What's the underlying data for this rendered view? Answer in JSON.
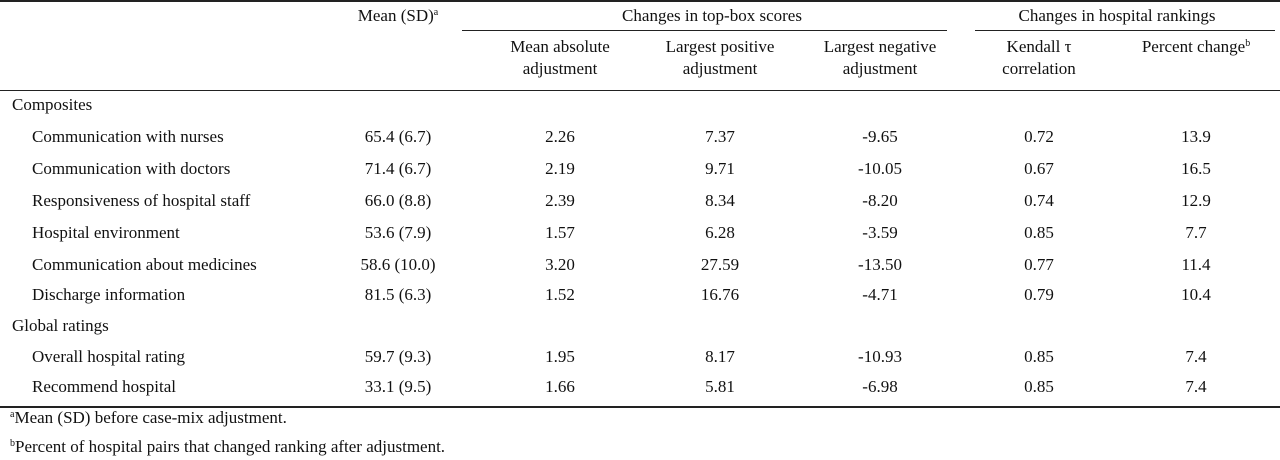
{
  "header": {
    "mean_sd": "Mean (SD)",
    "mean_sd_sup": "a",
    "group_topbox": "Changes in top-box scores",
    "group_rankings": "Changes in hospital rankings",
    "col_mean_abs_1": "Mean absolute",
    "col_mean_abs_2": "adjustment",
    "col_largest_pos_1": "Largest positive",
    "col_largest_pos_2": "adjustment",
    "col_largest_neg_1": "Largest negative",
    "col_largest_neg_2": "adjustment",
    "col_kendall_1": "Kendall τ",
    "col_kendall_2": "correlation",
    "col_percent_change": "Percent change",
    "col_percent_change_sup": "b"
  },
  "sections": [
    {
      "title": "Composites",
      "rows": [
        {
          "label": "Communication with nurses",
          "mean": "65.4 (6.7)",
          "mean_abs": "2.26",
          "pos": "7.37",
          "neg": "-9.65",
          "kendall": "0.72",
          "pct": "13.9"
        },
        {
          "label": "Communication with doctors",
          "mean": "71.4 (6.7)",
          "mean_abs": "2.19",
          "pos": "9.71",
          "neg": "-10.05",
          "kendall": "0.67",
          "pct": "16.5"
        },
        {
          "label": "Responsiveness of hospital staff",
          "mean": "66.0 (8.8)",
          "mean_abs": "2.39",
          "pos": "8.34",
          "neg": "-8.20",
          "kendall": "0.74",
          "pct": "12.9"
        },
        {
          "label": "Hospital environment",
          "mean": "53.6 (7.9)",
          "mean_abs": "1.57",
          "pos": "6.28",
          "neg": "-3.59",
          "kendall": "0.85",
          "pct": "7.7"
        },
        {
          "label": "Communication about medicines",
          "mean": "58.6 (10.0)",
          "mean_abs": "3.20",
          "pos": "27.59",
          "neg": "-13.50",
          "kendall": "0.77",
          "pct": "11.4"
        },
        {
          "label": "Discharge information",
          "mean": "81.5 (6.3)",
          "mean_abs": "1.52",
          "pos": "16.76",
          "neg": "-4.71",
          "kendall": "0.79",
          "pct": "10.4"
        }
      ]
    },
    {
      "title": "Global ratings",
      "rows": [
        {
          "label": "Overall hospital rating",
          "mean": "59.7 (9.3)",
          "mean_abs": "1.95",
          "pos": "8.17",
          "neg": "-10.93",
          "kendall": "0.85",
          "pct": "7.4"
        },
        {
          "label": "Recommend hospital",
          "mean": "33.1 (9.5)",
          "mean_abs": "1.66",
          "pos": "5.81",
          "neg": "-6.98",
          "kendall": "0.85",
          "pct": "7.4"
        }
      ]
    }
  ],
  "footnotes": [
    {
      "sup": "a",
      "text": "Mean (SD) before case-mix adjustment."
    },
    {
      "sup": "b",
      "text": "Percent of hospital pairs that changed ranking after adjustment."
    }
  ]
}
